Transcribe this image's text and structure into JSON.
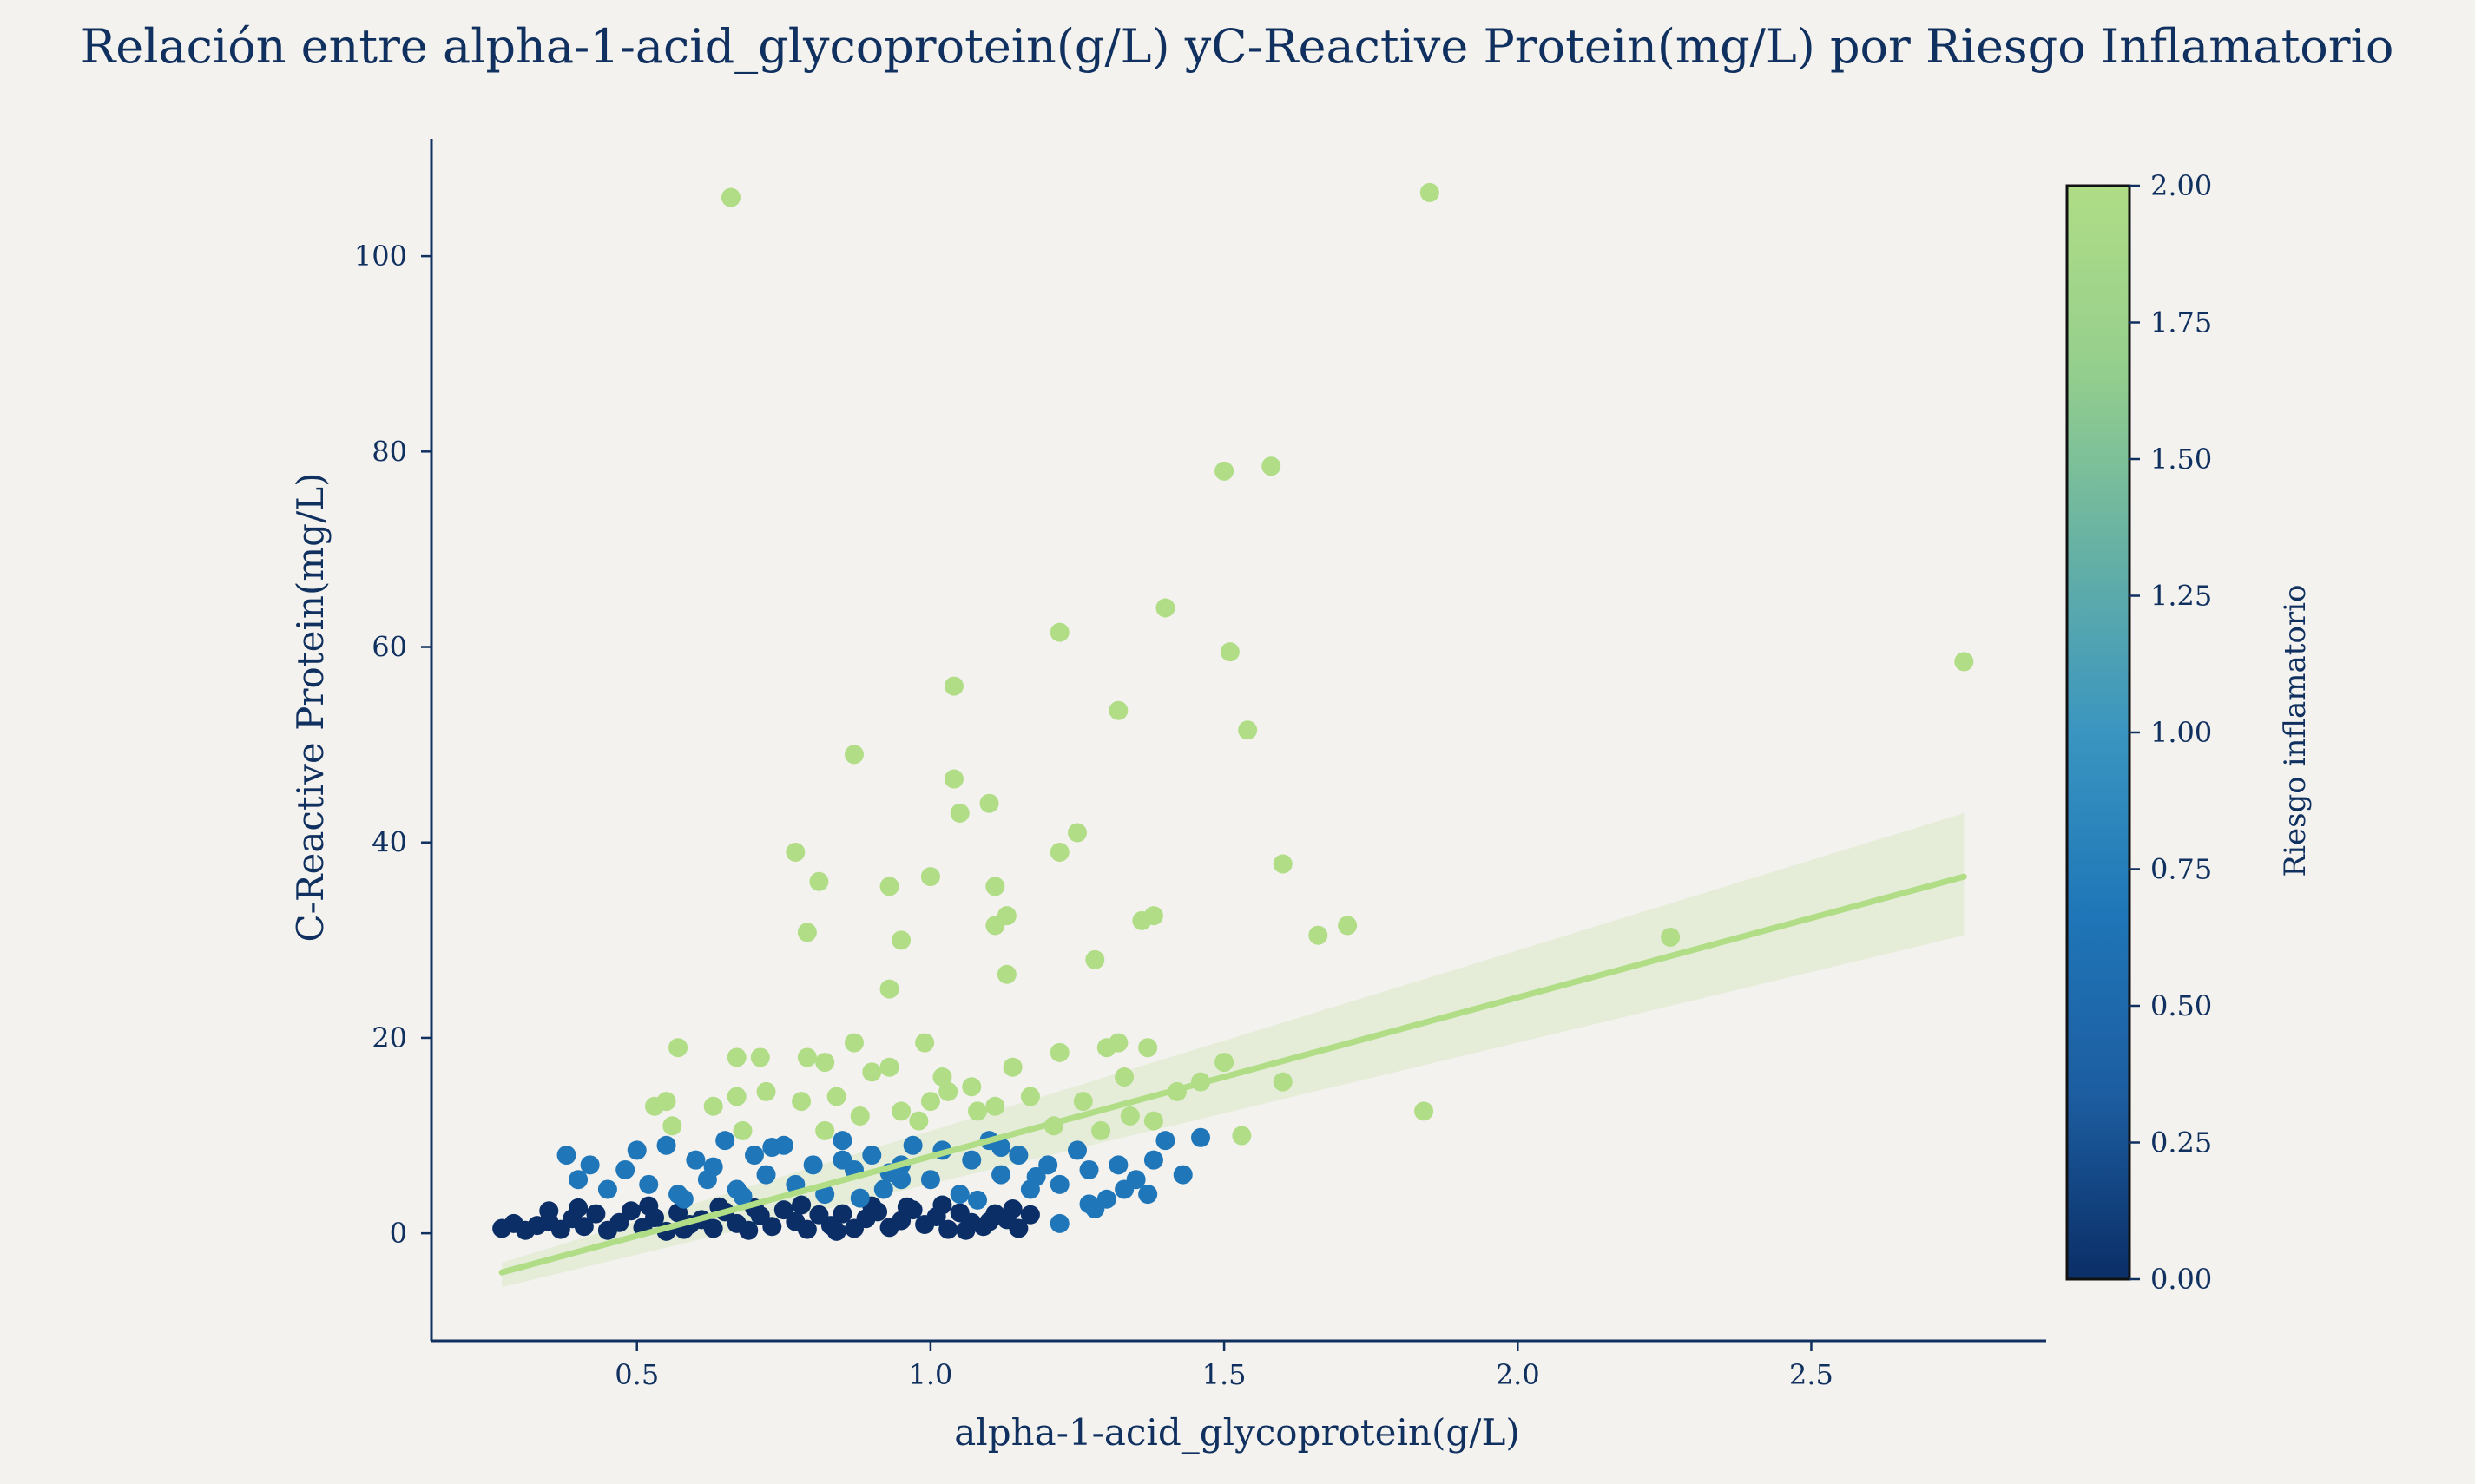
{
  "chart_data": {
    "type": "scatter",
    "title": "Relación entre alpha-1-acid_glycoprotein(g/L) yC-Reactive Protein(mg/L) por Riesgo Inflamatorio",
    "xlabel": "alpha-1-acid_glycoprotein(g/L)",
    "ylabel": "C-Reactive Protein(mg/L)",
    "xlim": [
      0.15,
      2.9
    ],
    "ylim": [
      -11,
      112
    ],
    "xticks": [
      0.5,
      1.0,
      1.5,
      2.0,
      2.5
    ],
    "xtick_labels": [
      "0.5",
      "1.0",
      "1.5",
      "2.0",
      "2.5"
    ],
    "yticks": [
      0,
      20,
      40,
      60,
      80,
      100
    ],
    "ytick_labels": [
      "0",
      "20",
      "40",
      "60",
      "80",
      "100"
    ],
    "grid": false,
    "colorbar": {
      "label": "Riesgo inflamatorio",
      "range": [
        0.0,
        2.0
      ],
      "ticks": [
        0.0,
        0.25,
        0.5,
        0.75,
        1.0,
        1.25,
        1.5,
        1.75,
        2.0
      ],
      "tick_labels": [
        "0.00",
        "0.25",
        "0.50",
        "0.75",
        "1.00",
        "1.25",
        "1.50",
        "1.75",
        "2.00"
      ],
      "colormap": [
        "#0b2e66",
        "#1c5da0",
        "#1f76b8",
        "#3a95c0",
        "#66b1a4",
        "#95cf8d",
        "#b0dd86"
      ]
    },
    "regression_line": {
      "x": [
        0.27,
        2.76
      ],
      "y": [
        -4.0,
        36.5
      ],
      "ci_upper": [
        -3.0,
        43.0
      ],
      "ci_lower": [
        -5.5,
        30.5
      ],
      "color": "#b0dd86"
    },
    "series": [
      {
        "risk": 0,
        "color": "#0b2e66",
        "points": [
          [
            0.27,
            0.5
          ],
          [
            0.29,
            1.0
          ],
          [
            0.31,
            0.3
          ],
          [
            0.33,
            0.8
          ],
          [
            0.35,
            1.2
          ],
          [
            0.37,
            0.4
          ],
          [
            0.39,
            1.5
          ],
          [
            0.41,
            0.7
          ],
          [
            0.43,
            2.0
          ],
          [
            0.45,
            0.3
          ],
          [
            0.47,
            1.1
          ],
          [
            0.49,
            2.3
          ],
          [
            0.51,
            0.6
          ],
          [
            0.53,
            1.6
          ],
          [
            0.55,
            0.2
          ],
          [
            0.57,
            2.1
          ],
          [
            0.59,
            0.9
          ],
          [
            0.61,
            1.4
          ],
          [
            0.63,
            0.5
          ],
          [
            0.65,
            2.2
          ],
          [
            0.67,
            1.0
          ],
          [
            0.69,
            0.3
          ],
          [
            0.71,
            1.8
          ],
          [
            0.73,
            0.7
          ],
          [
            0.75,
            2.4
          ],
          [
            0.77,
            1.2
          ],
          [
            0.79,
            0.4
          ],
          [
            0.81,
            1.9
          ],
          [
            0.83,
            0.8
          ],
          [
            0.85,
            2.0
          ],
          [
            0.87,
            0.5
          ],
          [
            0.89,
            1.5
          ],
          [
            0.91,
            2.2
          ],
          [
            0.93,
            0.6
          ],
          [
            0.95,
            1.3
          ],
          [
            0.97,
            2.4
          ],
          [
            0.99,
            0.9
          ],
          [
            1.01,
            1.7
          ],
          [
            1.03,
            0.4
          ],
          [
            1.05,
            2.1
          ],
          [
            1.07,
            1.1
          ],
          [
            1.09,
            0.7
          ],
          [
            1.11,
            2.0
          ],
          [
            1.13,
            1.4
          ],
          [
            1.15,
            0.5
          ],
          [
            1.17,
            1.9
          ],
          [
            0.4,
            2.6
          ],
          [
            0.52,
            2.8
          ],
          [
            0.64,
            2.7
          ],
          [
            0.78,
            2.9
          ],
          [
            0.9,
            2.8
          ],
          [
            1.02,
            2.9
          ],
          [
            1.1,
            1.2
          ],
          [
            0.35,
            2.3
          ],
          [
            0.58,
            0.4
          ],
          [
            0.7,
            2.6
          ],
          [
            0.84,
            0.2
          ],
          [
            0.96,
            2.7
          ],
          [
            1.06,
            0.3
          ],
          [
            1.14,
            2.5
          ]
        ]
      },
      {
        "risk": 1,
        "color": "#1f76b8",
        "points": [
          [
            0.38,
            8.0
          ],
          [
            0.4,
            5.5
          ],
          [
            0.42,
            7.0
          ],
          [
            0.45,
            4.5
          ],
          [
            0.48,
            6.5
          ],
          [
            0.5,
            8.5
          ],
          [
            0.52,
            5.0
          ],
          [
            0.55,
            9.0
          ],
          [
            0.57,
            4.0
          ],
          [
            0.6,
            7.5
          ],
          [
            0.62,
            5.5
          ],
          [
            0.65,
            9.5
          ],
          [
            0.67,
            4.5
          ],
          [
            0.7,
            8.0
          ],
          [
            0.72,
            6.0
          ],
          [
            0.75,
            9.0
          ],
          [
            0.77,
            5.0
          ],
          [
            0.8,
            7.0
          ],
          [
            0.82,
            4.0
          ],
          [
            0.85,
            9.5
          ],
          [
            0.87,
            6.5
          ],
          [
            0.9,
            8.0
          ],
          [
            0.92,
            4.5
          ],
          [
            0.95,
            7.0
          ],
          [
            0.97,
            9.0
          ],
          [
            1.0,
            5.5
          ],
          [
            1.02,
            8.5
          ],
          [
            1.05,
            4.0
          ],
          [
            1.07,
            7.5
          ],
          [
            1.1,
            9.5
          ],
          [
            1.12,
            6.0
          ],
          [
            1.15,
            8.0
          ],
          [
            1.17,
            4.5
          ],
          [
            1.2,
            7.0
          ],
          [
            1.22,
            5.0
          ],
          [
            1.25,
            8.5
          ],
          [
            1.27,
            6.5
          ],
          [
            1.3,
            3.5
          ],
          [
            1.32,
            7.0
          ],
          [
            1.35,
            5.5
          ],
          [
            1.37,
            4.0
          ],
          [
            1.4,
            9.5
          ],
          [
            1.43,
            6.0
          ],
          [
            1.46,
            9.8
          ],
          [
            1.22,
            1.0
          ],
          [
            1.27,
            3.0
          ],
          [
            1.33,
            4.5
          ],
          [
            0.58,
            3.5
          ],
          [
            0.68,
            3.8
          ],
          [
            0.88,
            3.6
          ],
          [
            1.08,
            3.4
          ],
          [
            0.95,
            5.5
          ],
          [
            0.85,
            7.5
          ],
          [
            1.12,
            8.8
          ],
          [
            0.63,
            6.8
          ],
          [
            0.73,
            8.8
          ],
          [
            0.93,
            6.2
          ],
          [
            1.18,
            5.8
          ],
          [
            1.28,
            2.5
          ],
          [
            1.38,
            7.5
          ]
        ]
      },
      {
        "risk": 2,
        "color": "#b0dd86",
        "points": [
          [
            0.66,
            106.0
          ],
          [
            1.85,
            106.5
          ],
          [
            1.5,
            78.0
          ],
          [
            1.58,
            78.5
          ],
          [
            1.4,
            64.0
          ],
          [
            1.22,
            61.5
          ],
          [
            1.51,
            59.5
          ],
          [
            2.76,
            58.5
          ],
          [
            1.04,
            56.0
          ],
          [
            1.32,
            53.5
          ],
          [
            1.54,
            51.5
          ],
          [
            0.87,
            49.0
          ],
          [
            1.04,
            46.5
          ],
          [
            1.1,
            44.0
          ],
          [
            1.05,
            43.0
          ],
          [
            1.25,
            41.0
          ],
          [
            0.77,
            39.0
          ],
          [
            1.22,
            39.0
          ],
          [
            1.6,
            37.8
          ],
          [
            1.0,
            36.5
          ],
          [
            0.81,
            36.0
          ],
          [
            0.93,
            35.5
          ],
          [
            1.11,
            35.5
          ],
          [
            1.36,
            32.0
          ],
          [
            1.38,
            32.5
          ],
          [
            1.13,
            32.5
          ],
          [
            1.11,
            31.5
          ],
          [
            1.71,
            31.5
          ],
          [
            0.79,
            30.8
          ],
          [
            0.95,
            30.0
          ],
          [
            1.66,
            30.5
          ],
          [
            2.26,
            30.3
          ],
          [
            1.28,
            28.0
          ],
          [
            1.13,
            26.5
          ],
          [
            0.93,
            25.0
          ],
          [
            0.57,
            19.0
          ],
          [
            0.67,
            18.0
          ],
          [
            0.71,
            18.0
          ],
          [
            0.79,
            18.0
          ],
          [
            0.87,
            19.5
          ],
          [
            0.99,
            19.5
          ],
          [
            1.22,
            18.5
          ],
          [
            1.3,
            19.0
          ],
          [
            1.32,
            19.5
          ],
          [
            1.37,
            19.0
          ],
          [
            0.82,
            17.5
          ],
          [
            0.9,
            16.5
          ],
          [
            0.93,
            17.0
          ],
          [
            1.02,
            16.0
          ],
          [
            1.07,
            15.0
          ],
          [
            1.14,
            17.0
          ],
          [
            1.33,
            16.0
          ],
          [
            1.46,
            15.5
          ],
          [
            1.5,
            17.5
          ],
          [
            1.6,
            15.5
          ],
          [
            0.53,
            13.0
          ],
          [
            0.55,
            13.5
          ],
          [
            0.63,
            13.0
          ],
          [
            0.67,
            14.0
          ],
          [
            0.72,
            14.5
          ],
          [
            0.78,
            13.5
          ],
          [
            0.84,
            14.0
          ],
          [
            0.95,
            12.5
          ],
          [
            1.03,
            14.5
          ],
          [
            1.11,
            13.0
          ],
          [
            1.17,
            14.0
          ],
          [
            1.26,
            13.5
          ],
          [
            1.34,
            12.0
          ],
          [
            1.42,
            14.5
          ],
          [
            1.84,
            12.5
          ],
          [
            1.53,
            10.0
          ],
          [
            0.56,
            11.0
          ],
          [
            0.68,
            10.5
          ],
          [
            0.82,
            10.5
          ],
          [
            0.98,
            11.5
          ],
          [
            1.08,
            12.5
          ],
          [
            1.21,
            11.0
          ],
          [
            1.29,
            10.5
          ],
          [
            1.38,
            11.5
          ],
          [
            1.0,
            13.5
          ],
          [
            0.88,
            12.0
          ]
        ]
      }
    ]
  }
}
